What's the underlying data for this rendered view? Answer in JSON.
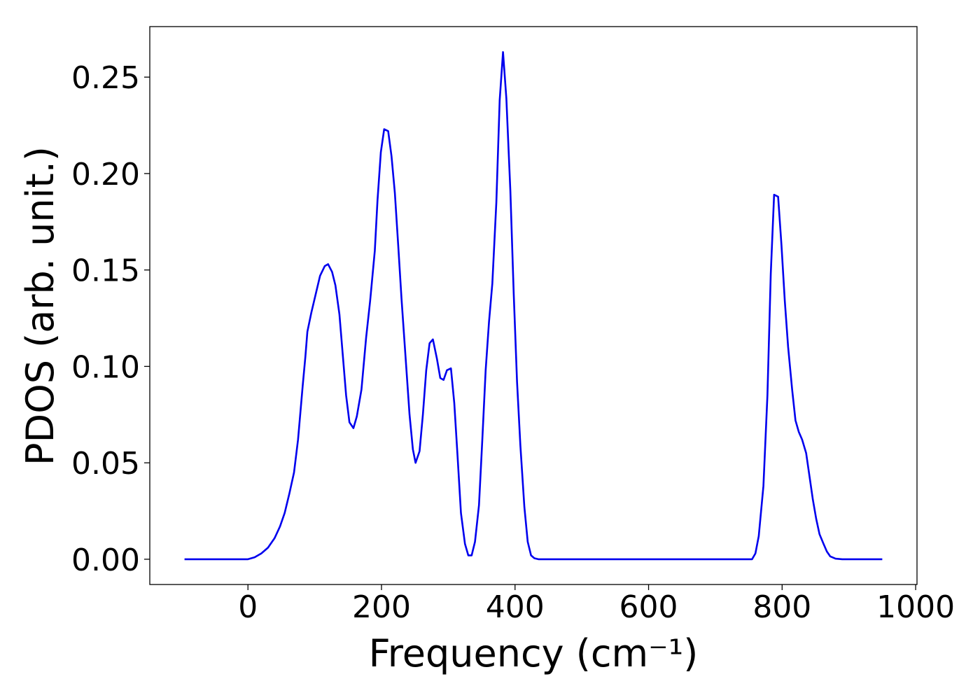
{
  "chart_data": {
    "type": "line",
    "xlabel": "Frequency (cm⁻¹)",
    "ylabel": "PDOS (arb. unit.)",
    "xlim": [
      -147,
      1002
    ],
    "ylim": [
      -0.0131,
      0.2762
    ],
    "xticks": [
      0,
      200,
      400,
      600,
      800,
      1000
    ],
    "yticks": [
      {
        "value": 0,
        "label": "0.00"
      },
      {
        "value": 0.05,
        "label": "0.05"
      },
      {
        "value": 0.1,
        "label": "0.10"
      },
      {
        "value": 0.15,
        "label": "0.15"
      },
      {
        "value": 0.2,
        "label": "0.20"
      },
      {
        "value": 0.25,
        "label": "0.25"
      }
    ],
    "grid": false,
    "series": [
      {
        "color": "#0000ee",
        "x": [
          -95,
          0,
          10,
          20,
          30,
          40,
          48,
          55,
          62,
          69,
          75,
          82,
          86,
          89,
          95,
          108,
          115,
          120,
          126,
          131,
          137,
          147,
          152,
          158,
          163,
          170,
          177,
          183,
          190,
          194,
          199,
          204,
          210,
          215,
          220,
          225,
          230,
          236,
          242,
          247,
          251,
          257,
          262,
          267,
          272,
          277,
          283,
          288,
          293,
          298,
          304,
          309,
          314,
          319,
          325,
          330,
          335,
          340,
          346,
          351,
          356,
          361,
          366,
          372,
          377,
          382,
          387,
          393,
          398,
          403,
          408,
          414,
          419,
          424,
          429,
          435,
          755,
          760,
          765,
          772,
          778,
          783,
          788,
          794,
          799,
          804,
          809,
          815,
          820,
          825,
          830,
          836,
          841,
          846,
          851,
          856,
          862,
          867,
          872,
          880,
          890,
          950
        ],
        "values": [
          0,
          0,
          0.001,
          0.003,
          0.006,
          0.011,
          0.017,
          0.024,
          0.034,
          0.045,
          0.062,
          0.09,
          0.105,
          0.118,
          0.128,
          0.147,
          0.152,
          0.153,
          0.149,
          0.142,
          0.127,
          0.085,
          0.071,
          0.068,
          0.074,
          0.088,
          0.115,
          0.134,
          0.16,
          0.186,
          0.211,
          0.223,
          0.222,
          0.209,
          0.19,
          0.163,
          0.135,
          0.105,
          0.075,
          0.057,
          0.05,
          0.056,
          0.075,
          0.098,
          0.112,
          0.114,
          0.104,
          0.094,
          0.093,
          0.098,
          0.099,
          0.081,
          0.053,
          0.024,
          0.008,
          0.002,
          0.002,
          0.009,
          0.028,
          0.062,
          0.098,
          0.123,
          0.143,
          0.185,
          0.238,
          0.263,
          0.239,
          0.191,
          0.138,
          0.092,
          0.059,
          0.027,
          0.009,
          0.002,
          0.0005,
          0,
          0,
          0.003,
          0.012,
          0.038,
          0.085,
          0.148,
          0.189,
          0.188,
          0.163,
          0.134,
          0.11,
          0.088,
          0.072,
          0.066,
          0.062,
          0.055,
          0.043,
          0.031,
          0.021,
          0.013,
          0.008,
          0.004,
          0.0015,
          0.0003,
          0,
          0
        ]
      }
    ]
  }
}
